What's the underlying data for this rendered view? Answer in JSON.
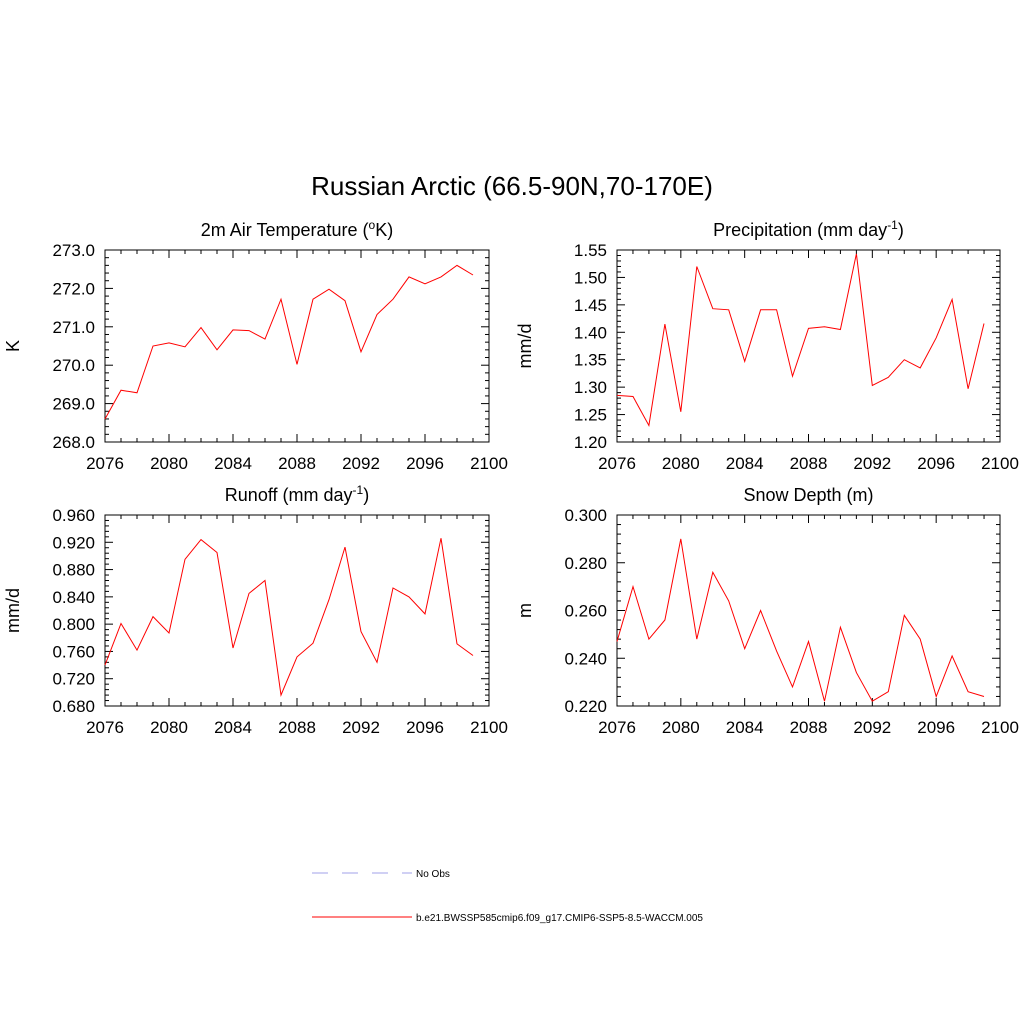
{
  "figure": {
    "title": "Russian Arctic (66.5-90N,70-170E)"
  },
  "legend": {
    "entries": [
      {
        "label": "No Obs",
        "color": "#a0a0e8",
        "dash": true
      },
      {
        "label": "b.e21.BWSSP585cmip6.f09_g17.CMIP6-SSP5-8.5-WACCM.005",
        "color": "#ff0000",
        "dash": false
      }
    ]
  },
  "chart_data": [
    {
      "type": "line",
      "title": "2m Air Temperature (",
      "title_sup": "o",
      "title_after": "K)",
      "ylabel": "K",
      "xlim": [
        2076,
        2100
      ],
      "ylim": [
        268.0,
        273.0
      ],
      "xticks": [
        "2076",
        "2080",
        "2084",
        "2088",
        "2092",
        "2096",
        "2100"
      ],
      "yticks": [
        "268.0",
        "269.0",
        "270.0",
        "271.0",
        "272.0",
        "273.0"
      ],
      "series": [
        {
          "name": "b.e21.BWSSP585cmip6.f09_g17.CMIP6-SSP5-8.5-WACCM.005",
          "color": "#ff0000",
          "x": [
            2076,
            2077,
            2078,
            2079,
            2080,
            2081,
            2082,
            2083,
            2084,
            2085,
            2086,
            2087,
            2088,
            2089,
            2090,
            2091,
            2092,
            2093,
            2094,
            2095,
            2096,
            2097,
            2098,
            2099
          ],
          "values": [
            268.6,
            269.35,
            269.28,
            270.5,
            270.58,
            270.48,
            270.98,
            270.4,
            270.92,
            270.9,
            270.68,
            271.72,
            270.02,
            271.72,
            271.98,
            271.68,
            270.35,
            271.32,
            271.72,
            272.3,
            272.12,
            272.3,
            272.6,
            272.35
          ]
        }
      ]
    },
    {
      "type": "line",
      "title": "Precipitation (mm day",
      "title_sup": "-1",
      "title_after": ")",
      "ylabel": "mm/d",
      "xlim": [
        2076,
        2100
      ],
      "ylim": [
        1.2,
        1.55
      ],
      "xticks": [
        "2076",
        "2080",
        "2084",
        "2088",
        "2092",
        "2096",
        "2100"
      ],
      "yticks": [
        "1.20",
        "1.25",
        "1.30",
        "1.35",
        "1.40",
        "1.45",
        "1.50",
        "1.55"
      ],
      "series": [
        {
          "name": "b.e21.BWSSP585cmip6.f09_g17.CMIP6-SSP5-8.5-WACCM.005",
          "color": "#ff0000",
          "x": [
            2076,
            2077,
            2078,
            2079,
            2080,
            2081,
            2082,
            2083,
            2084,
            2085,
            2086,
            2087,
            2088,
            2089,
            2090,
            2091,
            2092,
            2093,
            2094,
            2095,
            2096,
            2097,
            2098,
            2099
          ],
          "values": [
            1.285,
            1.283,
            1.23,
            1.415,
            1.255,
            1.52,
            1.443,
            1.441,
            1.347,
            1.441,
            1.441,
            1.32,
            1.407,
            1.41,
            1.405,
            1.543,
            1.303,
            1.318,
            1.35,
            1.335,
            1.39,
            1.46,
            1.297,
            1.416
          ]
        }
      ]
    },
    {
      "type": "line",
      "title": "Runoff (mm day",
      "title_sup": "-1",
      "title_after": ")",
      "ylabel": "mm/d",
      "xlim": [
        2076,
        2100
      ],
      "ylim": [
        0.68,
        0.96
      ],
      "xticks": [
        "2076",
        "2080",
        "2084",
        "2088",
        "2092",
        "2096",
        "2100"
      ],
      "yticks": [
        "0.680",
        "0.720",
        "0.760",
        "0.800",
        "0.840",
        "0.880",
        "0.920",
        "0.960"
      ],
      "series": [
        {
          "name": "b.e21.BWSSP585cmip6.f09_g17.CMIP6-SSP5-8.5-WACCM.005",
          "color": "#ff0000",
          "x": [
            2076,
            2077,
            2078,
            2079,
            2080,
            2081,
            2082,
            2083,
            2084,
            2085,
            2086,
            2087,
            2088,
            2089,
            2090,
            2091,
            2092,
            2093,
            2094,
            2095,
            2096,
            2097,
            2098,
            2099
          ],
          "values": [
            0.74,
            0.801,
            0.762,
            0.811,
            0.787,
            0.895,
            0.924,
            0.905,
            0.765,
            0.845,
            0.864,
            0.696,
            0.752,
            0.772,
            0.836,
            0.913,
            0.789,
            0.744,
            0.853,
            0.84,
            0.815,
            0.926,
            0.771,
            0.754
          ]
        }
      ]
    },
    {
      "type": "line",
      "title": "Snow Depth (m)",
      "title_sup": "",
      "title_after": "",
      "ylabel": "m",
      "xlim": [
        2076,
        2100
      ],
      "ylim": [
        0.22,
        0.3
      ],
      "xticks": [
        "2076",
        "2080",
        "2084",
        "2088",
        "2092",
        "2096",
        "2100"
      ],
      "yticks": [
        "0.220",
        "0.240",
        "0.260",
        "0.280",
        "0.300"
      ],
      "series": [
        {
          "name": "b.e21.BWSSP585cmip6.f09_g17.CMIP6-SSP5-8.5-WACCM.005",
          "color": "#ff0000",
          "x": [
            2076,
            2077,
            2078,
            2079,
            2080,
            2081,
            2082,
            2083,
            2084,
            2085,
            2086,
            2087,
            2088,
            2089,
            2090,
            2091,
            2092,
            2093,
            2094,
            2095,
            2096,
            2097,
            2098,
            2099
          ],
          "values": [
            0.247,
            0.27,
            0.248,
            0.256,
            0.29,
            0.248,
            0.276,
            0.264,
            0.244,
            0.26,
            0.243,
            0.228,
            0.247,
            0.222,
            0.253,
            0.234,
            0.222,
            0.226,
            0.258,
            0.248,
            0.224,
            0.241,
            0.226,
            0.224
          ]
        }
      ]
    }
  ]
}
